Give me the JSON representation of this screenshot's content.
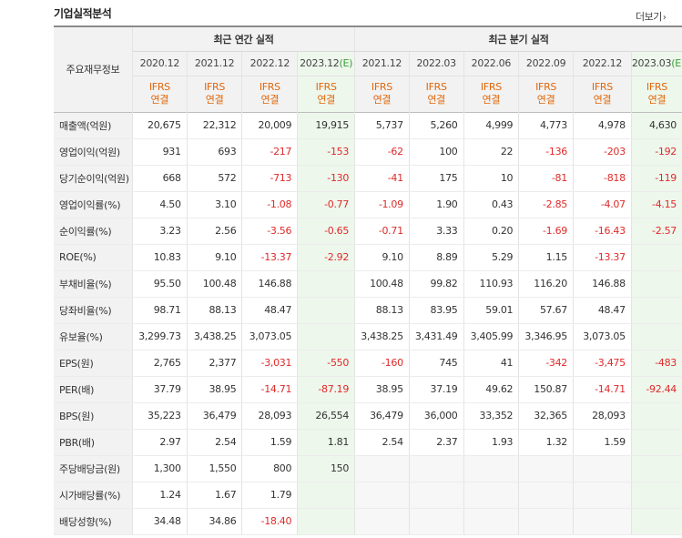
{
  "section_title": "기업실적분석",
  "more_link": "더보기",
  "more_arrow": "›",
  "header": {
    "key_info_label": "주요재무정보",
    "annual_group": "최근 연간 실적",
    "quarter_group": "최근 분기 실적",
    "periods": [
      {
        "label": "2020.12",
        "estimate": false
      },
      {
        "label": "2021.12",
        "estimate": false
      },
      {
        "label": "2022.12",
        "estimate": false
      },
      {
        "label": "2023.12",
        "suffix": "(E)",
        "estimate": true
      },
      {
        "label": "2021.12",
        "estimate": false
      },
      {
        "label": "2022.03",
        "estimate": false
      },
      {
        "label": "2022.06",
        "estimate": false
      },
      {
        "label": "2022.09",
        "estimate": false
      },
      {
        "label": "2022.12",
        "estimate": false
      },
      {
        "label": "2023.03",
        "suffix": "(E)",
        "estimate": true
      }
    ],
    "ifrs_label": "IFRS",
    "consolidated_label": "연결"
  },
  "rows": [
    {
      "label": "매출액(억원)",
      "values": [
        "20,675",
        "22,312",
        "20,009",
        "19,915",
        "5,737",
        "5,260",
        "4,999",
        "4,773",
        "4,978",
        "4,630"
      ]
    },
    {
      "label": "영업이익(억원)",
      "values": [
        "931",
        "693",
        "-217",
        "-153",
        "-62",
        "100",
        "22",
        "-136",
        "-203",
        "-192"
      ]
    },
    {
      "label": "당기순이익(억원)",
      "values": [
        "668",
        "572",
        "-713",
        "-130",
        "-41",
        "175",
        "10",
        "-81",
        "-818",
        "-119"
      ]
    },
    {
      "label": "영업이익률(%)",
      "values": [
        "4.50",
        "3.10",
        "-1.08",
        "-0.77",
        "-1.09",
        "1.90",
        "0.43",
        "-2.85",
        "-4.07",
        "-4.15"
      ]
    },
    {
      "label": "순이익률(%)",
      "values": [
        "3.23",
        "2.56",
        "-3.56",
        "-0.65",
        "-0.71",
        "3.33",
        "0.20",
        "-1.69",
        "-16.43",
        "-2.57"
      ]
    },
    {
      "label": "ROE(%)",
      "values": [
        "10.83",
        "9.10",
        "-13.37",
        "-2.92",
        "9.10",
        "8.89",
        "5.29",
        "1.15",
        "-13.37",
        ""
      ]
    },
    {
      "label": "부채비율(%)",
      "values": [
        "95.50",
        "100.48",
        "146.88",
        "",
        "100.48",
        "99.82",
        "110.93",
        "116.20",
        "146.88",
        ""
      ]
    },
    {
      "label": "당좌비율(%)",
      "values": [
        "98.71",
        "88.13",
        "48.47",
        "",
        "88.13",
        "83.95",
        "59.01",
        "57.67",
        "48.47",
        ""
      ]
    },
    {
      "label": "유보율(%)",
      "values": [
        "3,299.73",
        "3,438.25",
        "3,073.05",
        "",
        "3,438.25",
        "3,431.49",
        "3,405.99",
        "3,346.95",
        "3,073.05",
        ""
      ]
    },
    {
      "label": "EPS(원)",
      "values": [
        "2,765",
        "2,377",
        "-3,031",
        "-550",
        "-160",
        "745",
        "41",
        "-342",
        "-3,475",
        "-483"
      ]
    },
    {
      "label": "PER(배)",
      "values": [
        "37.79",
        "38.95",
        "-14.71",
        "-87.19",
        "38.95",
        "37.19",
        "49.62",
        "150.87",
        "-14.71",
        "-92.44"
      ]
    },
    {
      "label": "BPS(원)",
      "values": [
        "35,223",
        "36,479",
        "28,093",
        "26,554",
        "36,479",
        "36,000",
        "33,352",
        "32,365",
        "28,093",
        ""
      ]
    },
    {
      "label": "PBR(배)",
      "values": [
        "2.97",
        "2.54",
        "1.59",
        "1.81",
        "2.54",
        "2.37",
        "1.93",
        "1.32",
        "1.59",
        ""
      ]
    },
    {
      "label": "주당배당금(원)",
      "values": [
        "1,300",
        "1,550",
        "800",
        "150",
        "",
        "",
        "",
        "",
        "",
        ""
      ]
    },
    {
      "label": "시가배당률(%)",
      "values": [
        "1.24",
        "1.67",
        "1.79",
        "",
        "",
        "",
        "",
        "",
        "",
        ""
      ]
    },
    {
      "label": "배당성향(%)",
      "values": [
        "34.48",
        "34.86",
        "-18.40",
        "",
        "",
        "",
        "",
        "",
        "",
        ""
      ]
    }
  ],
  "colors": {
    "negative": "#e12929",
    "ifrs": "#e0670a",
    "estimate_bg": "#eef7ec",
    "estimate_text": "#37a037"
  }
}
